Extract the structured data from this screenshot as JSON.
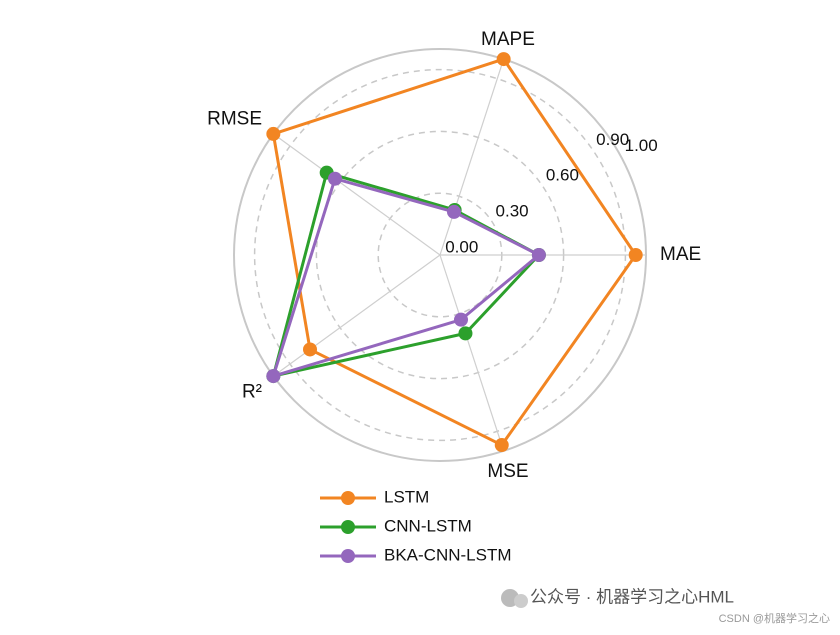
{
  "chart_data": {
    "type": "radar",
    "categories": [
      "MAE",
      "MAPE",
      "RMSE",
      "R²",
      "MSE"
    ],
    "series": [
      {
        "name": "LSTM",
        "color": "#f28522",
        "values": [
          0.95,
          1.0,
          1.0,
          0.78,
          0.97
        ]
      },
      {
        "name": "CNN-LSTM",
        "color": "#2ca02c",
        "values": [
          0.48,
          0.23,
          0.68,
          1.0,
          0.4
        ]
      },
      {
        "name": "BKA-CNN-LSTM",
        "color": "#9467bd",
        "values": [
          0.48,
          0.22,
          0.63,
          1.0,
          0.33
        ]
      }
    ],
    "ylim": [
      0,
      1
    ],
    "yticks": [
      {
        "value": 0,
        "label": "0.00"
      },
      {
        "value": 0.3,
        "label": "0.30"
      },
      {
        "value": 0.6,
        "label": "0.60"
      },
      {
        "value": 0.9,
        "label": "0.90"
      },
      {
        "value": 1,
        "label": "1.00"
      }
    ],
    "grid": true,
    "legend": "bottom"
  },
  "watermark": "公众号 · 机器学习之心HML",
  "source_watermark": "CSDN @机器学习之心"
}
